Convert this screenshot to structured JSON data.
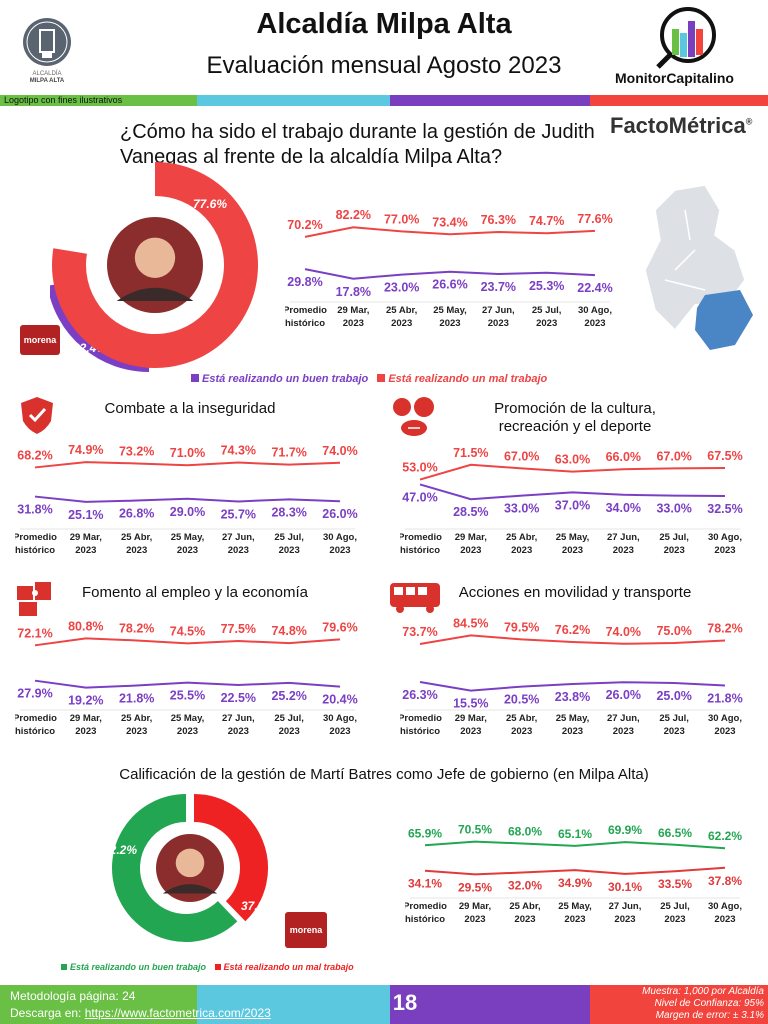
{
  "header": {
    "title": "Alcaldía Milpa Alta",
    "subtitle": "Evaluación mensual Agosto 2023",
    "logo_left_text": "ALCALDÍA MILPA ALTA",
    "logo_right_text": "MonitorCapitalino",
    "band_label": "Logotipo con fines ilustrativos",
    "brand": "FactoMétrica",
    "brand_mark": "®"
  },
  "colors": {
    "green": "#6abf45",
    "cyan": "#5bc8e0",
    "purple": "#7a3fbf",
    "red": "#f0443c",
    "good_purple": "#7b3fc4",
    "bad_red": "#ee4444",
    "good_green": "#22a652"
  },
  "question": "¿Cómo ha sido el trabajo durante la gestión de Judith Vanegas al frente de la alcaldía Milpa Alta?",
  "party_badge": "morena",
  "legend1": {
    "good": "Está realizando un buen trabajo",
    "bad": "Está realizando un mal trabajo"
  },
  "section3_title": "Calificación de la gestión de Martí Batres como Jefe de gobierno (en Milpa Alta)",
  "legend2": {
    "good": "Está realizando un buen trabajo",
    "bad": "Está realizando un mal trabajo"
  },
  "footer": {
    "methodology": "Metodología página: 24",
    "download_prefix": "Descarga en: ",
    "download_link": "https://www.factometrica.com/2023",
    "page": "18",
    "sample": "Muestra:  1,000 por Alcaldía",
    "confidence": "Nivel de Confianza: 95%",
    "margin": "Margen de error: ± 3.1%"
  },
  "chart_data": [
    {
      "type": "pie",
      "slices": [
        {
          "label": "Está realizando un buen trabajo",
          "value": 22.4,
          "display": "22.4%",
          "color": "#7b3fc4"
        },
        {
          "label": "Está realizando un mal trabajo",
          "value": 77.6,
          "display": "77.6%",
          "color": "#ee4444"
        }
      ]
    },
    {
      "type": "line",
      "title": "",
      "categories": [
        "Promedio histórico",
        "29 Mar, 2023",
        "25 Abr, 2023",
        "25 May, 2023",
        "27 Jun, 2023",
        "25 Jul, 2023",
        "30 Ago, 2023"
      ],
      "series": [
        {
          "name": "Está realizando un mal trabajo",
          "color": "#ee4444",
          "values": [
            70.2,
            82.2,
            77.0,
            73.4,
            76.3,
            74.7,
            77.6
          ]
        },
        {
          "name": "Está realizando un buen trabajo",
          "color": "#7b3fc4",
          "values": [
            29.8,
            17.8,
            23.0,
            26.6,
            23.7,
            25.3,
            22.4
          ]
        }
      ]
    },
    {
      "type": "line",
      "title": "Combate a la inseguridad",
      "icon": "shield-icon",
      "categories": [
        "Promedio histórico",
        "29 Mar, 2023",
        "25 Abr, 2023",
        "25 May, 2023",
        "27 Jun, 2023",
        "25 Jul, 2023",
        "30 Ago, 2023"
      ],
      "series": [
        {
          "name": "Está realizando un mal trabajo",
          "color": "#ee4444",
          "values": [
            68.2,
            74.9,
            73.2,
            71.0,
            74.3,
            71.7,
            74.0
          ]
        },
        {
          "name": "Está realizando un buen trabajo",
          "color": "#7b3fc4",
          "values": [
            31.8,
            25.1,
            26.8,
            29.0,
            25.7,
            28.3,
            26.0
          ]
        }
      ]
    },
    {
      "type": "line",
      "title": "Promoción de la cultura, recreación y el deporte",
      "icon": "sports-balls-icon",
      "categories": [
        "Promedio histórico",
        "29 Mar, 2023",
        "25 Abr, 2023",
        "25 May, 2023",
        "27 Jun, 2023",
        "25 Jul, 2023",
        "30 Ago, 2023"
      ],
      "series": [
        {
          "name": "Está realizando un mal trabajo",
          "color": "#ee4444",
          "values": [
            53.0,
            71.5,
            67.0,
            63.0,
            66.0,
            67.0,
            67.5
          ]
        },
        {
          "name": "Está realizando un buen trabajo",
          "color": "#7b3fc4",
          "values": [
            47.0,
            28.5,
            33.0,
            37.0,
            34.0,
            33.0,
            32.5
          ]
        }
      ]
    },
    {
      "type": "line",
      "title": "Fomento al empleo y la economía",
      "icon": "puzzle-icon",
      "categories": [
        "Promedio histórico",
        "29 Mar, 2023",
        "25 Abr, 2023",
        "25 May, 2023",
        "27 Jun, 2023",
        "25 Jul, 2023",
        "30 Ago, 2023"
      ],
      "series": [
        {
          "name": "Está realizando un mal trabajo",
          "color": "#ee4444",
          "values": [
            72.1,
            80.8,
            78.2,
            74.5,
            77.5,
            74.8,
            79.6
          ]
        },
        {
          "name": "Está realizando un buen trabajo",
          "color": "#7b3fc4",
          "values": [
            27.9,
            19.2,
            21.8,
            25.5,
            22.5,
            25.2,
            20.4
          ]
        }
      ]
    },
    {
      "type": "line",
      "title": "Acciones en movilidad y transporte",
      "icon": "bus-icon",
      "categories": [
        "Promedio histórico",
        "29 Mar, 2023",
        "25 Abr, 2023",
        "25 May, 2023",
        "27 Jun, 2023",
        "25 Jul, 2023",
        "30 Ago, 2023"
      ],
      "series": [
        {
          "name": "Está realizando un mal trabajo",
          "color": "#ee4444",
          "values": [
            73.7,
            84.5,
            79.5,
            76.2,
            74.0,
            75.0,
            78.2
          ]
        },
        {
          "name": "Está realizando un buen trabajo",
          "color": "#7b3fc4",
          "values": [
            26.3,
            15.5,
            20.5,
            23.8,
            26.0,
            25.0,
            21.8
          ]
        }
      ]
    },
    {
      "type": "pie",
      "slices": [
        {
          "label": "Está realizando un buen trabajo",
          "value": 62.2,
          "display": "62.2%",
          "color": "#22a652"
        },
        {
          "label": "Está realizando un mal trabajo",
          "value": 37.8,
          "display": "37.8%",
          "color": "#ee2222"
        }
      ]
    },
    {
      "type": "line",
      "title": "",
      "categories": [
        "Promedio histórico",
        "29 Mar, 2023",
        "25 Abr, 2023",
        "25 May, 2023",
        "27 Jun, 2023",
        "25 Jul, 2023",
        "30 Ago, 2023"
      ],
      "series": [
        {
          "name": "Está realizando un buen trabajo",
          "color": "#22a652",
          "values": [
            65.9,
            70.5,
            68.0,
            65.1,
            69.9,
            66.5,
            62.2
          ]
        },
        {
          "name": "Está realizando un mal trabajo",
          "color": "#e03a3a",
          "values": [
            34.1,
            29.5,
            32.0,
            34.9,
            30.1,
            33.5,
            37.8
          ]
        }
      ]
    }
  ]
}
